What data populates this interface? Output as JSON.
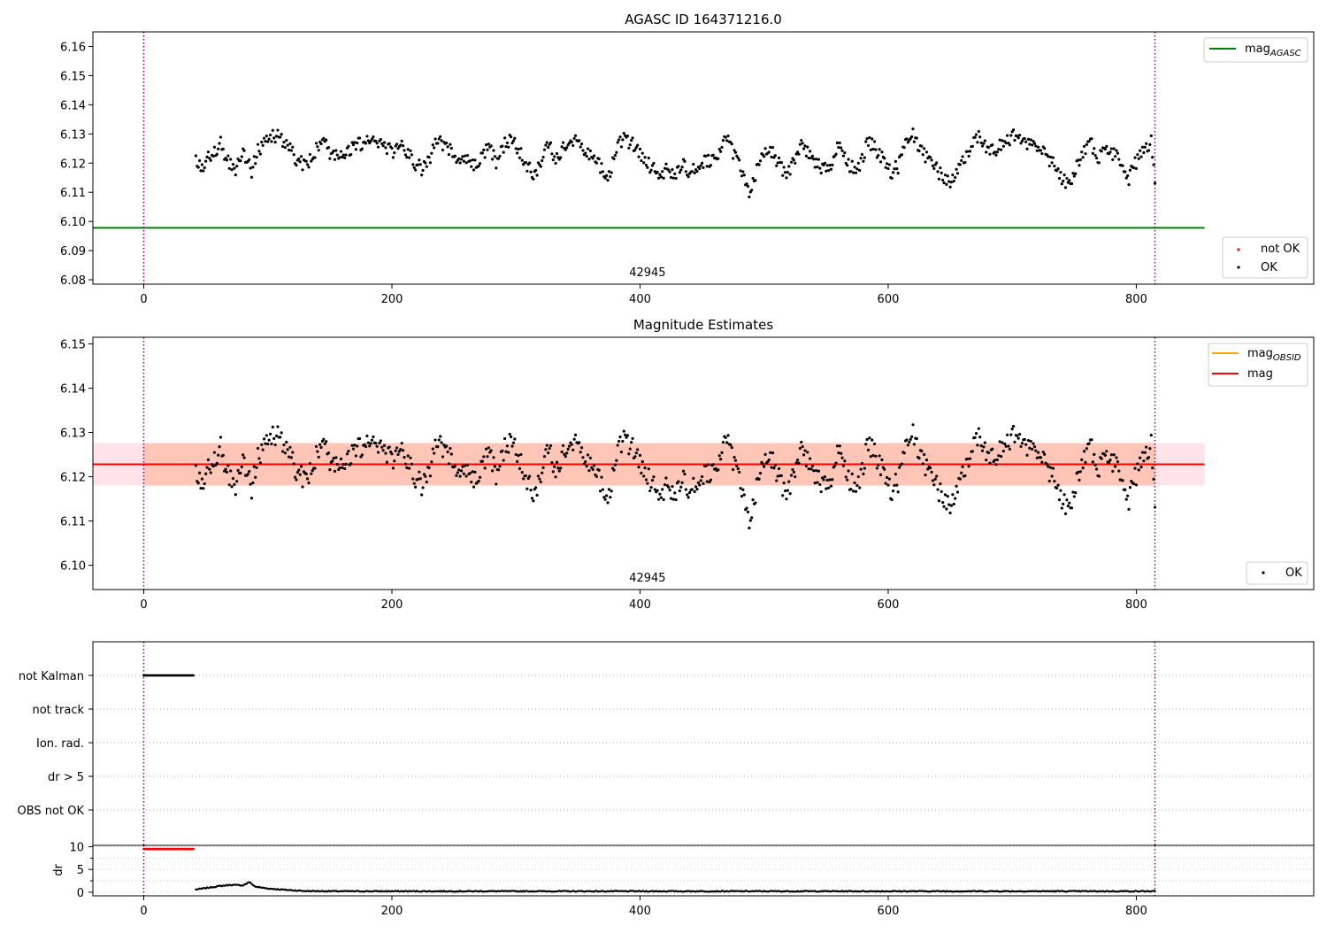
{
  "colors": {
    "ok_point": "#000000",
    "not_ok_point": "#ff0000",
    "mag_agasc_line": "#008000",
    "mag_obsid_line": "#ffa500",
    "mag_line": "#ff0000",
    "band_mag": "#ffc0cb",
    "band_obsid": "#ffa07a",
    "obsid_boundary": "#800080"
  },
  "chart_data": [
    {
      "type": "scatter",
      "title": "AGASC ID 164371216.0",
      "xlabel": "",
      "ylabel": "",
      "xlim": [
        -41,
        943
      ],
      "ylim": [
        6.0785,
        6.165
      ],
      "xticks": [
        0,
        200,
        400,
        600,
        800
      ],
      "yticks": [
        6.08,
        6.09,
        6.1,
        6.11,
        6.12,
        6.13,
        6.14,
        6.15,
        6.16
      ],
      "obsid_label": "42945",
      "obsid_label_x": 406,
      "obsid_boundaries": [
        0,
        815
      ],
      "reference_lines": [
        {
          "name_main": "mag",
          "name_sub": "AGASC",
          "y": 6.0978,
          "x": [
            -41,
            855
          ]
        }
      ],
      "series": [
        {
          "name": "not OK",
          "points": []
        },
        {
          "name": "OK",
          "samples": "mag_samples"
        }
      ],
      "legends": [
        {
          "position": "upper right",
          "entries": [
            {
              "main": "mag",
              "sub": "AGASC",
              "kind": "line"
            }
          ]
        },
        {
          "position": "lower right",
          "entries": [
            {
              "main": "not OK",
              "kind": "dot-red"
            },
            {
              "main": "OK",
              "kind": "dot-black"
            }
          ]
        }
      ],
      "grid": false
    },
    {
      "type": "scatter",
      "title": "Magnitude Estimates",
      "xlabel": "",
      "ylabel": "",
      "xlim": [
        -41,
        943
      ],
      "ylim": [
        6.0945,
        6.1515
      ],
      "xticks": [
        0,
        200,
        400,
        600,
        800
      ],
      "yticks": [
        6.1,
        6.11,
        6.12,
        6.13,
        6.14,
        6.15
      ],
      "obsid_label": "42945",
      "obsid_label_x": 406,
      "obsid_boundaries": [
        0,
        815
      ],
      "mag": 6.1228,
      "mag_band": [
        6.118,
        6.1276
      ],
      "mag_obsid": 6.1228,
      "mag_obsid_band": [
        6.118,
        6.1276
      ],
      "band_x": [
        -41,
        855
      ],
      "series": [
        {
          "name": "OK",
          "samples": "mag_samples"
        }
      ],
      "legends": [
        {
          "position": "upper right",
          "entries": [
            {
              "main": "mag",
              "sub": "OBSID",
              "kind": "line-orange"
            },
            {
              "main": "mag",
              "kind": "line-red"
            }
          ]
        },
        {
          "position": "lower right",
          "entries": [
            {
              "main": "OK",
              "kind": "dot-black"
            }
          ]
        }
      ],
      "grid": false
    },
    {
      "type": "scatter",
      "title": "",
      "xlim": [
        -41,
        943
      ],
      "categories": [
        "not Kalman",
        "not track",
        "Ion. rad.",
        "dr > 5",
        "OBS not OK"
      ],
      "flag_points": [
        {
          "flag": "not Kalman",
          "x_range": [
            0,
            40
          ],
          "step": 1
        }
      ],
      "obsid_boundaries": [
        0,
        815
      ],
      "grid": true
    },
    {
      "type": "scatter",
      "title": "",
      "xlabel": "",
      "ylabel": "dr",
      "xlim": [
        -41,
        943
      ],
      "ylim": [
        -0.8,
        10.3
      ],
      "xticks": [
        0,
        200,
        400,
        600,
        800
      ],
      "yticks": [
        0,
        5,
        10
      ],
      "obsid_boundaries": [
        0,
        815
      ],
      "clipped_points": {
        "x_range": [
          0,
          40
        ],
        "step": 1,
        "y": 9.5,
        "color": "#ff0000"
      },
      "dr_profile": [
        [
          40,
          0.5
        ],
        [
          50,
          0.9
        ],
        [
          60,
          1.3
        ],
        [
          70,
          1.6
        ],
        [
          80,
          1.5
        ],
        [
          85,
          2.2
        ],
        [
          90,
          1.2
        ],
        [
          100,
          0.8
        ],
        [
          115,
          0.5
        ],
        [
          130,
          0.25
        ],
        [
          160,
          0.2
        ],
        [
          815,
          0.2
        ]
      ],
      "grid": true
    }
  ],
  "mag_samples": [
    [
      42,
      6.1205
    ],
    [
      48,
      6.118
    ],
    [
      55,
      6.124
    ],
    [
      62,
      6.1265
    ],
    [
      68,
      6.1205
    ],
    [
      73,
      6.117
    ],
    [
      80,
      6.124
    ],
    [
      87,
      6.1175
    ],
    [
      92,
      6.124
    ],
    [
      98,
      6.127
    ],
    [
      104,
      6.129
    ],
    [
      110,
      6.129
    ],
    [
      116,
      6.1255
    ],
    [
      122,
      6.122
    ],
    [
      128,
      6.1195
    ],
    [
      134,
      6.121
    ],
    [
      140,
      6.126
    ],
    [
      146,
      6.126
    ],
    [
      152,
      6.123
    ],
    [
      158,
      6.123
    ],
    [
      164,
      6.124
    ],
    [
      170,
      6.126
    ],
    [
      176,
      6.127
    ],
    [
      182,
      6.129
    ],
    [
      188,
      6.127
    ],
    [
      194,
      6.1265
    ],
    [
      200,
      6.124
    ],
    [
      206,
      6.1265
    ],
    [
      212,
      6.124
    ],
    [
      218,
      6.1205
    ],
    [
      224,
      6.118
    ],
    [
      230,
      6.12
    ],
    [
      236,
      6.128
    ],
    [
      242,
      6.126
    ],
    [
      248,
      6.124
    ],
    [
      254,
      6.122
    ],
    [
      260,
      6.1205
    ],
    [
      266,
      6.1185
    ],
    [
      272,
      6.121
    ],
    [
      278,
      6.126
    ],
    [
      284,
      6.12
    ],
    [
      290,
      6.126
    ],
    [
      296,
      6.128
    ],
    [
      302,
      6.1245
    ],
    [
      308,
      6.1195
    ],
    [
      314,
      6.116
    ],
    [
      320,
      6.119
    ],
    [
      326,
      6.127
    ],
    [
      332,
      6.12
    ],
    [
      338,
      6.126
    ],
    [
      344,
      6.128
    ],
    [
      350,
      6.129
    ],
    [
      356,
      6.1245
    ],
    [
      362,
      6.1215
    ],
    [
      368,
      6.1185
    ],
    [
      374,
      6.115
    ],
    [
      380,
      6.123
    ],
    [
      386,
      6.129
    ],
    [
      392,
      6.127
    ],
    [
      398,
      6.125
    ],
    [
      404,
      6.121
    ],
    [
      410,
      6.118
    ],
    [
      416,
      6.116
    ],
    [
      422,
      6.1185
    ],
    [
      428,
      6.1165
    ],
    [
      434,
      6.1195
    ],
    [
      440,
      6.116
    ],
    [
      446,
      6.119
    ],
    [
      452,
      6.12
    ],
    [
      458,
      6.1215
    ],
    [
      464,
      6.124
    ],
    [
      470,
      6.128
    ],
    [
      476,
      6.123
    ],
    [
      482,
      6.118
    ],
    [
      488,
      6.11
    ],
    [
      494,
      6.117
    ],
    [
      500,
      6.124
    ],
    [
      506,
      6.124
    ],
    [
      512,
      6.1195
    ],
    [
      518,
      6.117
    ],
    [
      524,
      6.12
    ],
    [
      530,
      6.126
    ],
    [
      536,
      6.124
    ],
    [
      542,
      6.1195
    ],
    [
      548,
      6.1175
    ],
    [
      554,
      6.1185
    ],
    [
      560,
      6.126
    ],
    [
      566,
      6.121
    ],
    [
      572,
      6.118
    ],
    [
      578,
      6.12
    ],
    [
      584,
      6.1275
    ],
    [
      590,
      6.125
    ],
    [
      596,
      6.121
    ],
    [
      602,
      6.1165
    ],
    [
      608,
      6.119
    ],
    [
      614,
      6.127
    ],
    [
      620,
      6.13
    ],
    [
      626,
      6.124
    ],
    [
      632,
      6.121
    ],
    [
      638,
      6.118
    ],
    [
      644,
      6.116
    ],
    [
      650,
      6.113
    ],
    [
      656,
      6.119
    ],
    [
      662,
      6.122
    ],
    [
      668,
      6.126
    ],
    [
      674,
      6.129
    ],
    [
      680,
      6.1255
    ],
    [
      686,
      6.1245
    ],
    [
      692,
      6.1265
    ],
    [
      698,
      6.1285
    ],
    [
      704,
      6.13
    ],
    [
      710,
      6.1265
    ],
    [
      716,
      6.1255
    ],
    [
      722,
      6.1255
    ],
    [
      728,
      6.122
    ],
    [
      734,
      6.12
    ],
    [
      740,
      6.115
    ],
    [
      746,
      6.113
    ],
    [
      752,
      6.119
    ],
    [
      758,
      6.125
    ],
    [
      764,
      6.126
    ],
    [
      770,
      6.1215
    ],
    [
      776,
      6.1245
    ],
    [
      782,
      6.123
    ],
    [
      788,
      6.12
    ],
    [
      794,
      6.115
    ],
    [
      800,
      6.1205
    ],
    [
      806,
      6.1245
    ],
    [
      812,
      6.128
    ],
    [
      815,
      6.113
    ]
  ]
}
